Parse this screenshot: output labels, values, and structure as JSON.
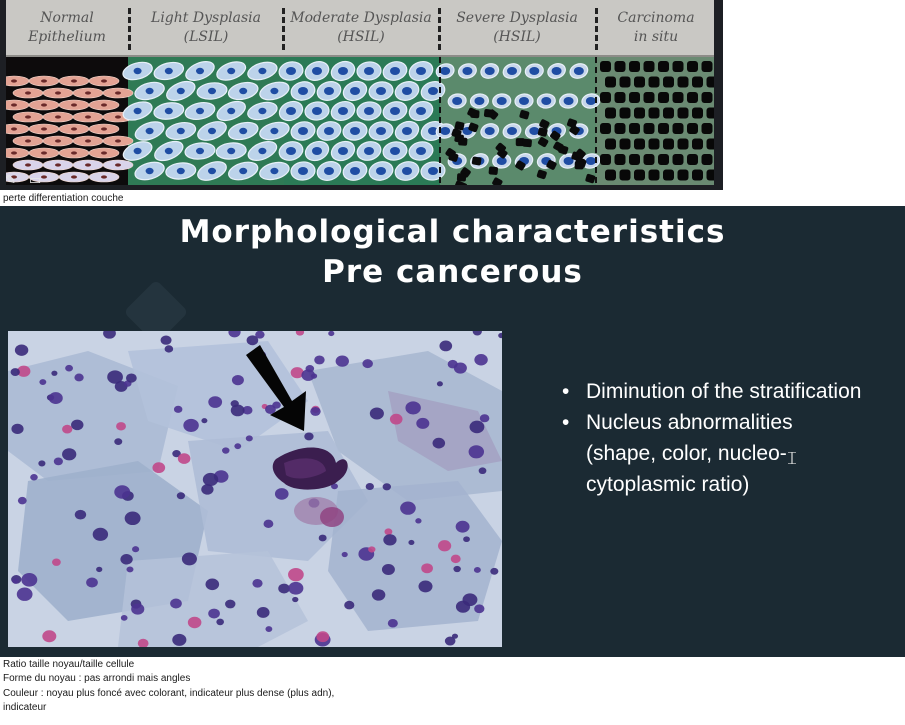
{
  "figure": {
    "stages": [
      {
        "line1": "Normal",
        "line2": "Epithelium"
      },
      {
        "line1": "Light Dysplasia",
        "line2": "(LSIL)"
      },
      {
        "line1": "Moderate Dysplasia",
        "line2": "(HSIL)"
      },
      {
        "line1": "Severe Dysplasia",
        "line2": "(HSIL)"
      },
      {
        "line1": "Carcinoma",
        "line2": "in situ"
      }
    ],
    "toolbar_icons": [
      "pen-icon",
      "slideshow-icon"
    ]
  },
  "caption_top": "perte differentiation couche",
  "slide": {
    "title_line1": "Morphological characteristics",
    "title_line2": "Pre cancerous",
    "bullets": [
      {
        "text": "Diminution of the stratification"
      },
      {
        "text": "Nucleus abnormalities"
      }
    ],
    "bullet_continuation": [
      "(shape, color, nucleo-",
      "cytoplasmic ratio)"
    ]
  },
  "notes": [
    "Ratio taille noyau/taille cellule",
    "Forme du noyau : pas arrondi mais angles",
    "Couleur : noyau plus foncé avec colorant, indicateur plus dense (plus adn),",
    "indicateur"
  ],
  "colors": {
    "slide_bg": "#1b2a33",
    "header_bg": "#c9c8c4",
    "normal_cells": "#e3a394",
    "dysplasia_bg": "#2f7a55",
    "cell_light": "#bcd3ea",
    "nucleus": "#1f4da3",
    "carcinoma_bg": "#6a8a72"
  }
}
